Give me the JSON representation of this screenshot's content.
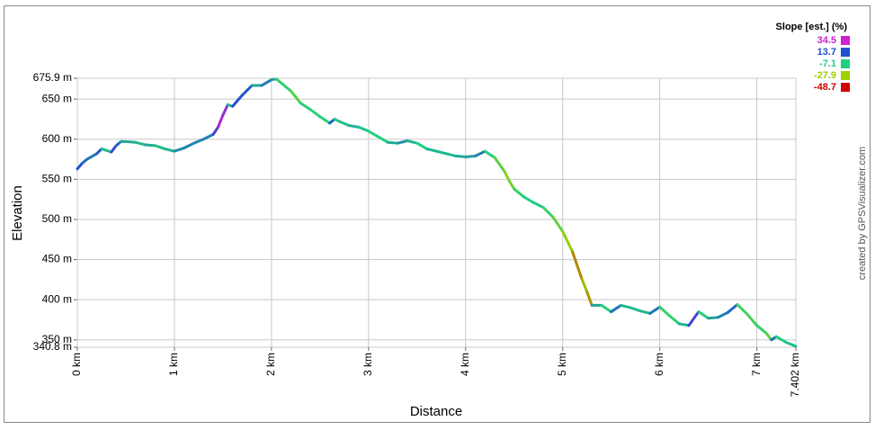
{
  "chart_data": {
    "type": "line",
    "x_label": "Distance",
    "y_label": "Elevation",
    "credit": "created by GPSVisualizer.com",
    "x": [
      0,
      0.05,
      0.1,
      0.2,
      0.25,
      0.3,
      0.35,
      0.4,
      0.45,
      0.5,
      0.6,
      0.7,
      0.8,
      0.9,
      1.0,
      1.1,
      1.2,
      1.3,
      1.4,
      1.45,
      1.5,
      1.55,
      1.6,
      1.7,
      1.8,
      1.9,
      2.0,
      2.05,
      2.1,
      2.2,
      2.3,
      2.4,
      2.5,
      2.6,
      2.65,
      2.7,
      2.8,
      2.9,
      3.0,
      3.1,
      3.2,
      3.3,
      3.4,
      3.5,
      3.6,
      3.7,
      3.8,
      3.9,
      4.0,
      4.1,
      4.2,
      4.3,
      4.4,
      4.45,
      4.5,
      4.6,
      4.7,
      4.8,
      4.9,
      5.0,
      5.1,
      5.2,
      5.25,
      5.3,
      5.4,
      5.5,
      5.6,
      5.7,
      5.8,
      5.9,
      6.0,
      6.1,
      6.2,
      6.3,
      6.4,
      6.5,
      6.6,
      6.7,
      6.8,
      6.9,
      7.0,
      7.1,
      7.15,
      7.2,
      7.3,
      7.402
    ],
    "values": [
      563,
      570,
      575,
      582,
      588,
      586,
      584,
      592,
      597,
      597,
      596,
      593,
      592,
      588,
      585,
      589,
      595,
      600,
      606,
      615,
      630,
      643,
      641,
      655,
      667,
      667,
      674,
      675,
      670,
      660,
      645,
      637,
      628,
      620,
      625,
      622,
      617,
      615,
      610,
      603,
      596,
      595,
      598,
      595,
      588,
      585,
      582,
      579,
      578,
      579,
      585,
      577,
      560,
      548,
      538,
      528,
      521,
      515,
      503,
      485,
      460,
      425,
      410,
      393,
      393,
      385,
      393,
      390,
      386,
      383,
      391,
      380,
      370,
      368,
      385,
      377,
      378,
      384,
      394,
      382,
      368,
      358,
      350,
      354,
      347,
      342
    ],
    "xlim": [
      0,
      7.402
    ],
    "ylim": [
      340.8,
      675.9
    ],
    "xticks": [
      {
        "value": 0,
        "label": "0 km"
      },
      {
        "value": 1,
        "label": "1 km"
      },
      {
        "value": 2,
        "label": "2 km"
      },
      {
        "value": 3,
        "label": "3 km"
      },
      {
        "value": 4,
        "label": "4 km"
      },
      {
        "value": 5,
        "label": "5 km"
      },
      {
        "value": 6,
        "label": "6 km"
      },
      {
        "value": 7,
        "label": "7 km"
      },
      {
        "value": 7.402,
        "label": "7.402 km"
      }
    ],
    "yticks": [
      {
        "value": 340.8,
        "label": "340.8 m"
      },
      {
        "value": 350,
        "label": "350 m"
      },
      {
        "value": 400,
        "label": "400 m"
      },
      {
        "value": 450,
        "label": "450 m"
      },
      {
        "value": 500,
        "label": "500 m"
      },
      {
        "value": 550,
        "label": "550 m"
      },
      {
        "value": 600,
        "label": "600 m"
      },
      {
        "value": 650,
        "label": "650 m"
      },
      {
        "value": 675.9,
        "label": "675.9 m"
      }
    ],
    "grid": true,
    "slope_legend": {
      "title": "Slope [est.] (%)",
      "values": [
        34.5,
        13.7,
        -7.1,
        -27.9,
        -48.7
      ],
      "colors": [
        "#d020d0",
        "#2050d0",
        "#20d080",
        "#a0d000",
        "#d00000"
      ]
    }
  }
}
